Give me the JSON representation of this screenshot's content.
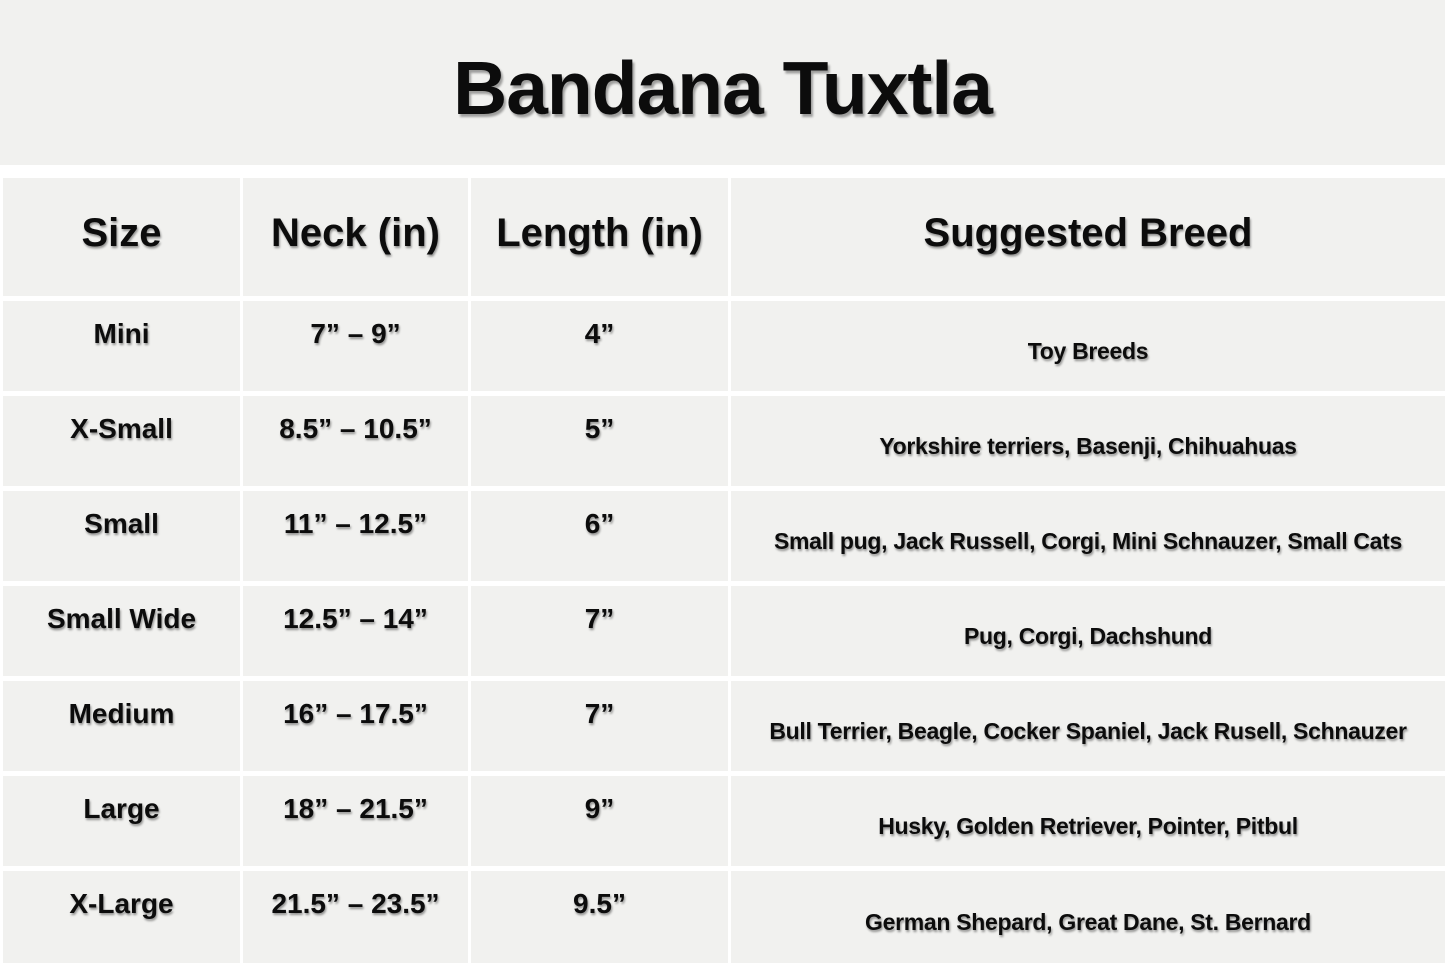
{
  "title": "Bandana Tuxtla",
  "table": {
    "columns": [
      {
        "key": "size",
        "label": "Size"
      },
      {
        "key": "neck",
        "label": "Neck (in)"
      },
      {
        "key": "length",
        "label": "Length (in)"
      },
      {
        "key": "breed",
        "label": "Suggested Breed"
      }
    ],
    "rows": [
      {
        "size": "Mini",
        "neck": "7” – 9”",
        "length": "4”",
        "breed": "Toy Breeds"
      },
      {
        "size": "X-Small",
        "neck": "8.5” – 10.5”",
        "length": "5”",
        "breed": "Yorkshire terriers, Basenji, Chihuahuas"
      },
      {
        "size": "Small",
        "neck": "11” – 12.5”",
        "length": "6”",
        "breed": "Small pug, Jack Russell, Corgi, Mini Schnauzer, Small Cats"
      },
      {
        "size": "Small Wide",
        "neck": "12.5” – 14”",
        "length": "7”",
        "breed": "Pug, Corgi, Dachshund"
      },
      {
        "size": "Medium",
        "neck": "16” – 17.5”",
        "length": "7”",
        "breed": "Bull Terrier, Beagle, Cocker Spaniel, Jack Rusell, Schnauzer"
      },
      {
        "size": "Large",
        "neck": "18” – 21.5”",
        "length": "9”",
        "breed": "Husky, Golden Retriever, Pointer, Pitbul"
      },
      {
        "size": "X-Large",
        "neck": "21.5” – 23.5”",
        "length": "9.5”",
        "breed": "German Shepard, Great Dane, St. Bernard"
      }
    ]
  },
  "colors": {
    "background": "#f1f1ef",
    "grid_lines": "#ffffff",
    "text": "#0c0c0c"
  }
}
